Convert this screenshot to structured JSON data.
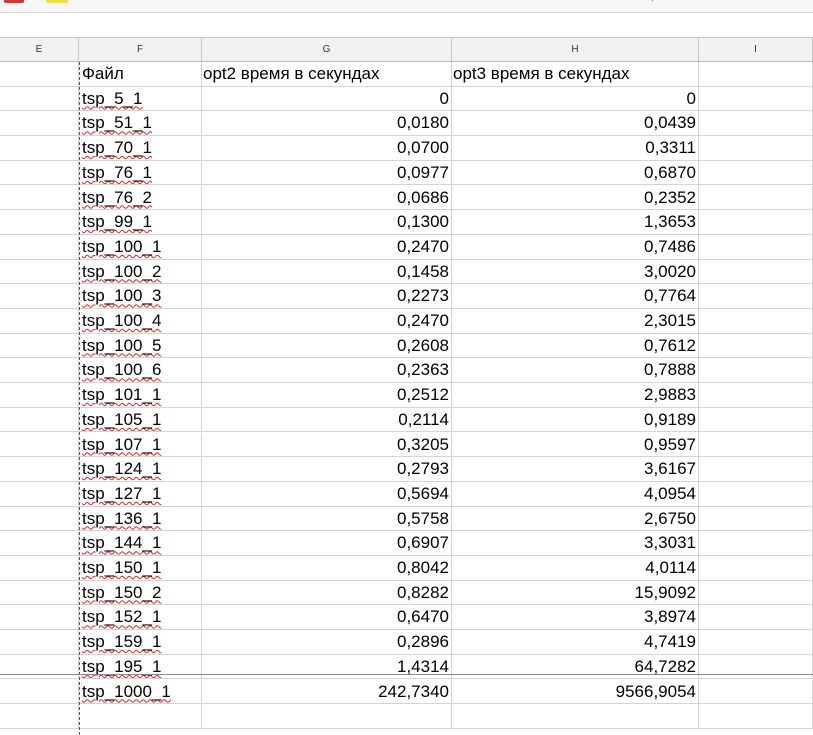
{
  "columns": [
    "E",
    "F",
    "G",
    "H",
    "I"
  ],
  "header": {
    "file": "Файл",
    "opt2": "opt2 время в секундах",
    "opt3": "opt3 время в секундах"
  },
  "rows": [
    {
      "file": "tsp_5_1",
      "opt2": "0",
      "opt3": "0"
    },
    {
      "file": "tsp_51_1",
      "opt2": "0,0180",
      "opt3": "0,0439"
    },
    {
      "file": "tsp_70_1",
      "opt2": "0,0700",
      "opt3": "0,3311"
    },
    {
      "file": "tsp_76_1",
      "opt2": "0,0977",
      "opt3": "0,6870"
    },
    {
      "file": "tsp_76_2",
      "opt2": "0,0686",
      "opt3": "0,2352"
    },
    {
      "file": "tsp_99_1",
      "opt2": "0,1300",
      "opt3": "1,3653"
    },
    {
      "file": "tsp_100_1",
      "opt2": "0,2470",
      "opt3": "0,7486"
    },
    {
      "file": "tsp_100_2",
      "opt2": "0,1458",
      "opt3": "3,0020"
    },
    {
      "file": "tsp_100_3",
      "opt2": "0,2273",
      "opt3": "0,7764"
    },
    {
      "file": "tsp_100_4",
      "opt2": "0,2470",
      "opt3": "2,3015"
    },
    {
      "file": "tsp_100_5",
      "opt2": "0,2608",
      "opt3": "0,7612"
    },
    {
      "file": "tsp_100_6",
      "opt2": "0,2363",
      "opt3": "0,7888"
    },
    {
      "file": "tsp_101_1",
      "opt2": "0,2512",
      "opt3": "2,9883"
    },
    {
      "file": "tsp_105_1",
      "opt2": "0,2114",
      "opt3": "0,9189"
    },
    {
      "file": "tsp_107_1",
      "opt2": "0,3205",
      "opt3": "0,9597"
    },
    {
      "file": "tsp_124_1",
      "opt2": "0,2793",
      "opt3": "3,6167"
    },
    {
      "file": "tsp_127_1",
      "opt2": "0,5694",
      "opt3": "4,0954"
    },
    {
      "file": "tsp_136_1",
      "opt2": "0,5758",
      "opt3": "2,6750"
    },
    {
      "file": "tsp_144_1",
      "opt2": "0,6907",
      "opt3": "3,3031"
    },
    {
      "file": "tsp_150_1",
      "opt2": "0,8042",
      "opt3": "4,0114"
    },
    {
      "file": "tsp_150_2",
      "opt2": "0,8282",
      "opt3": "15,9092"
    },
    {
      "file": "tsp_152_1",
      "opt2": "0,6470",
      "opt3": "3,8974"
    },
    {
      "file": "tsp_159_1",
      "opt2": "0,2896",
      "opt3": "4,7419"
    },
    {
      "file": "tsp_195_1",
      "opt2": "1,4314",
      "opt3": "64,7282"
    },
    {
      "file": "tsp_1000_1",
      "opt2": "242,7340",
      "opt3": "9566,9054"
    }
  ]
}
